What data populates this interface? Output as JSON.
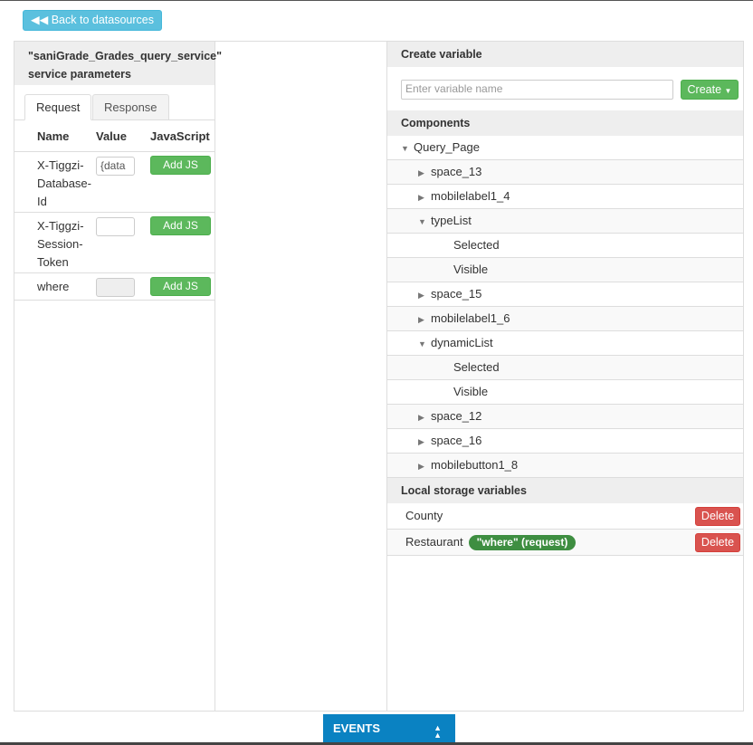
{
  "back_button": "Back to datasources",
  "left": {
    "title_line1": "\"saniGrade_Grades_query_service\"",
    "title_line2": "service parameters",
    "tabs": [
      "Request",
      "Response"
    ],
    "columns": [
      "Name",
      "Value",
      "JavaScript"
    ],
    "params": [
      {
        "name": "X-Tiggzi-Database-Id",
        "value": "{data",
        "js": "Add JS"
      },
      {
        "name": "X-Tiggzi-Session-Token",
        "value": "",
        "js": "Add JS"
      },
      {
        "name": "where",
        "value": "",
        "js": "Add JS"
      }
    ]
  },
  "right": {
    "create_header": "Create variable",
    "input_placeholder": "Enter variable name",
    "create_button": "Create",
    "components_header": "Components",
    "tree": [
      {
        "label": "Query_Page",
        "level": 0,
        "toggle": "expanded"
      },
      {
        "label": "space_13",
        "level": 1,
        "toggle": "collapsed"
      },
      {
        "label": "mobilelabel1_4",
        "level": 1,
        "toggle": "collapsed"
      },
      {
        "label": "typeList",
        "level": 1,
        "toggle": "expanded"
      },
      {
        "label": "Selected",
        "level": 2,
        "toggle": "none"
      },
      {
        "label": "Visible",
        "level": 2,
        "toggle": "none"
      },
      {
        "label": "space_15",
        "level": 1,
        "toggle": "collapsed"
      },
      {
        "label": "mobilelabel1_6",
        "level": 1,
        "toggle": "collapsed"
      },
      {
        "label": "dynamicList",
        "level": 1,
        "toggle": "expanded"
      },
      {
        "label": "Selected",
        "level": 2,
        "toggle": "none"
      },
      {
        "label": "Visible",
        "level": 2,
        "toggle": "none"
      },
      {
        "label": "space_12",
        "level": 1,
        "toggle": "collapsed"
      },
      {
        "label": "space_16",
        "level": 1,
        "toggle": "collapsed"
      },
      {
        "label": "mobilebutton1_8",
        "level": 1,
        "toggle": "collapsed"
      }
    ],
    "local_header": "Local storage variables",
    "locals": [
      {
        "name": "County",
        "badge": "",
        "delete": "Delete"
      },
      {
        "name": "Restaurant",
        "badge": "\"where\" (request)",
        "delete": "Delete"
      }
    ]
  },
  "events_label": "EVENTS"
}
